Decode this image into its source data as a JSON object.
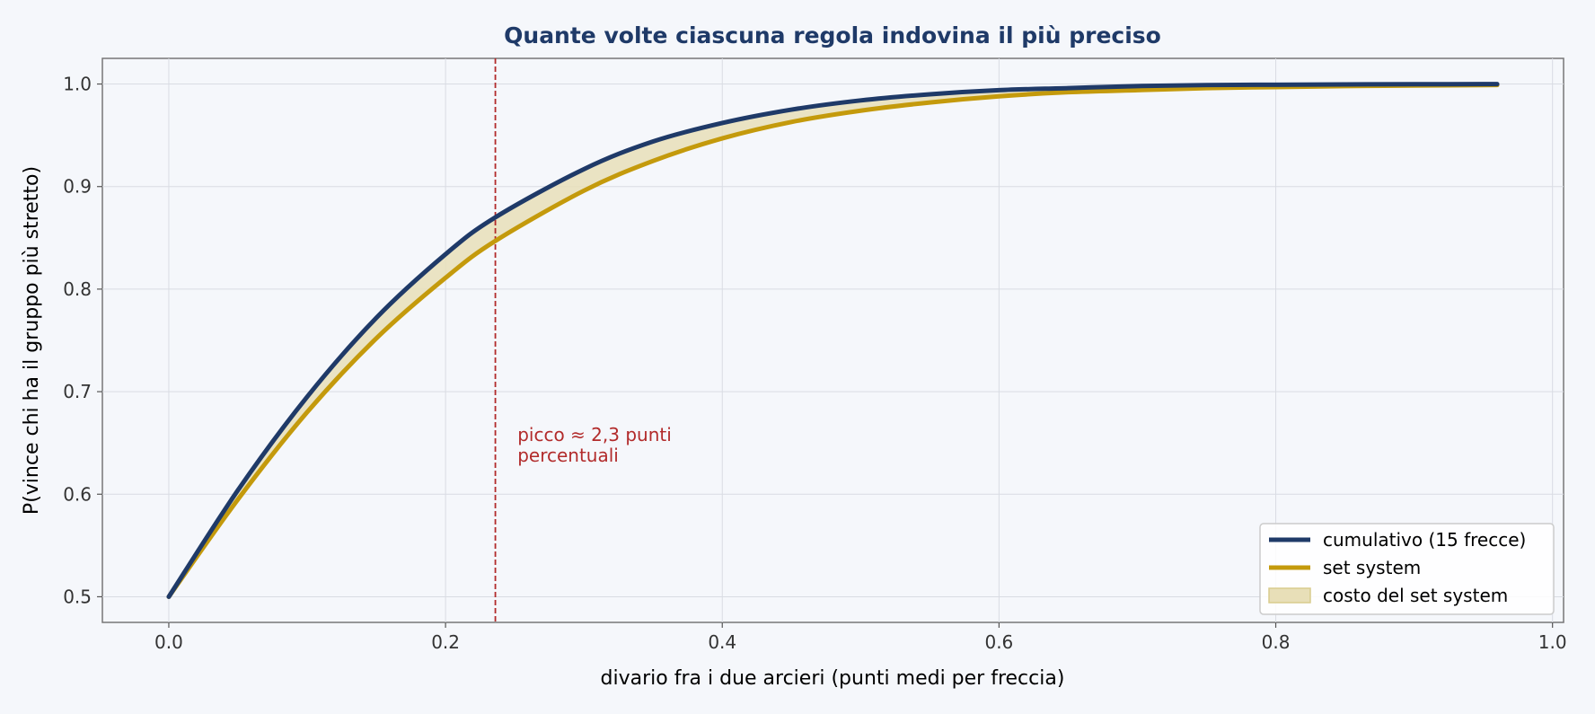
{
  "chart_data": {
    "type": "line",
    "title": "Quante volte ciascuna regola indovina il più preciso",
    "xlabel": "divario fra i due arcieri (punti medi per freccia)",
    "ylabel": "P(vince chi ha il gruppo più stretto)",
    "xlim": [
      -0.048,
      1.008
    ],
    "ylim": [
      0.475,
      1.025
    ],
    "xticks": [
      "0.0",
      "0.2",
      "0.4",
      "0.6",
      "0.8",
      "1.0"
    ],
    "yticks": [
      "0.5",
      "0.6",
      "0.7",
      "0.8",
      "0.9",
      "1.0"
    ],
    "grid": true,
    "legend_position": "lower-right",
    "x": [
      0.0,
      0.05,
      0.1,
      0.15,
      0.2,
      0.236,
      0.3,
      0.35,
      0.4,
      0.45,
      0.5,
      0.55,
      0.6,
      0.65,
      0.7,
      0.75,
      0.8,
      0.85,
      0.9,
      0.96
    ],
    "series": [
      {
        "name": "cumulativo (15 frecce)",
        "color": "#1f3a68",
        "values": [
          0.5,
          0.604,
          0.695,
          0.772,
          0.834,
          0.87,
          0.917,
          0.944,
          0.962,
          0.975,
          0.984,
          0.99,
          0.994,
          0.996,
          0.998,
          0.999,
          0.9993,
          0.9996,
          0.9998,
          0.9999
        ]
      },
      {
        "name": "set system",
        "color": "#c49a0c",
        "values": [
          0.5,
          0.595,
          0.68,
          0.752,
          0.811,
          0.847,
          0.896,
          0.925,
          0.947,
          0.963,
          0.974,
          0.982,
          0.988,
          0.992,
          0.994,
          0.996,
          0.997,
          0.998,
          0.9985,
          0.999
        ]
      }
    ],
    "fill_between": {
      "label": "costo del set system",
      "color": "#e8dfb8"
    },
    "vline": {
      "x": 0.236,
      "color": "#b22b2b"
    },
    "annotation": {
      "lines": [
        "picco ≈ 2,3 punti",
        "percentuali"
      ],
      "x": 0.252,
      "y": 0.638,
      "color": "#b22b2b"
    },
    "title_color": "#1f3a68"
  }
}
